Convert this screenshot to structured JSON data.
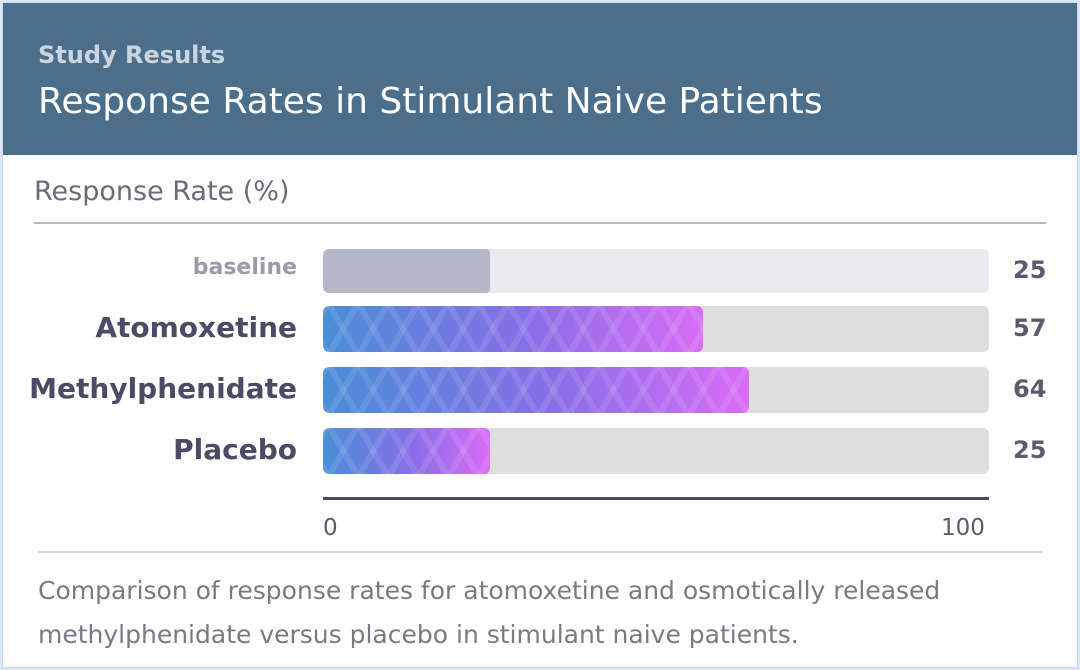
{
  "header": {
    "kicker": "Study Results",
    "title": "Response Rates in Stimulant Naive Patients"
  },
  "caption": "Comparison of response rates for atomoxetine and osmotically released methylphenidate versus placebo in stimulant naive patients.",
  "colors": {
    "header_bg": "#4b6f8b",
    "bar_gradient_start": "#4a8ed8",
    "bar_gradient_end": "#d96cf6",
    "baseline_bar": "#b4b9c9",
    "track": "#dedede"
  },
  "chart_data": {
    "type": "bar",
    "orientation": "horizontal",
    "title": "Response Rates in Stimulant Naive Patients",
    "xlabel": "Response Rate (%)",
    "xlim": [
      0,
      100
    ],
    "ticks": [
      "0",
      "100"
    ],
    "baseline": {
      "label": "baseline",
      "value": 25
    },
    "categories": [
      "Atomoxetine",
      "Methylphenidate",
      "Placebo"
    ],
    "values": [
      57,
      64,
      25
    ],
    "grid": false,
    "legend": "none"
  }
}
